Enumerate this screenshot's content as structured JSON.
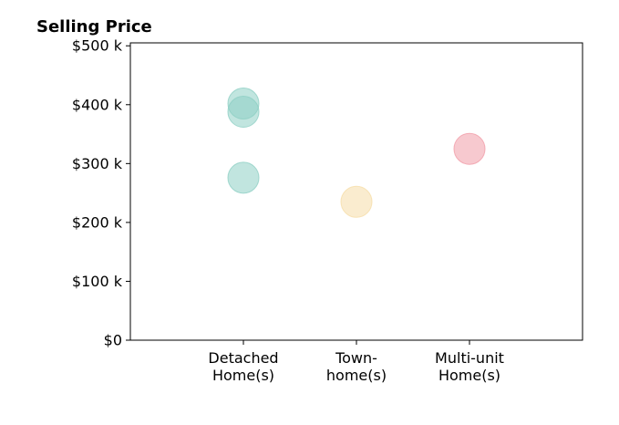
{
  "chart_data": {
    "type": "scatter",
    "title": "Selling Price",
    "xlabel": "",
    "ylabel": "",
    "categories": [
      [
        "Detached",
        "Home(s)"
      ],
      [
        "Town-",
        "home(s)"
      ],
      [
        "Multi-unit",
        "Home(s)"
      ]
    ],
    "y_ticks": [
      {
        "value": 0,
        "label": "$0"
      },
      {
        "value": 100000,
        "label": "$100 k"
      },
      {
        "value": 200000,
        "label": "$200 k"
      },
      {
        "value": 300000,
        "label": "$300 k"
      },
      {
        "value": 400000,
        "label": "$400 k"
      },
      {
        "value": 500000,
        "label": "$500 k"
      }
    ],
    "ylim": [
      0,
      505000
    ],
    "grid": false,
    "points": [
      {
        "category": 0,
        "y": 402000,
        "color": "#8ECFC4"
      },
      {
        "category": 0,
        "y": 388000,
        "color": "#8ECFC4"
      },
      {
        "category": 0,
        "y": 276000,
        "color": "#8ECFC4"
      },
      {
        "category": 1,
        "y": 235000,
        "color": "#F6DDA8"
      },
      {
        "category": 2,
        "y": 325000,
        "color": "#F19CA8"
      }
    ]
  }
}
